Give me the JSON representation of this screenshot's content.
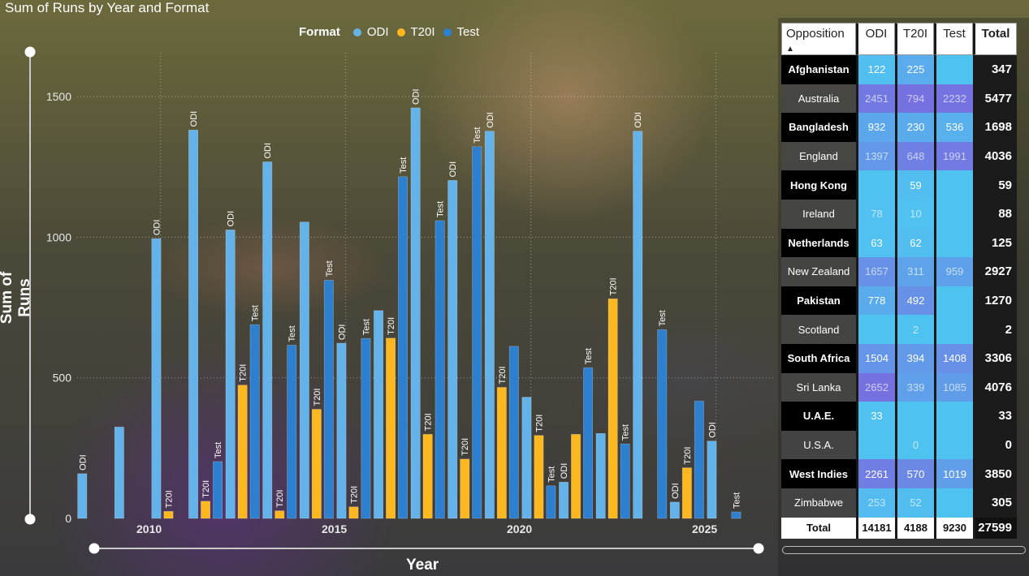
{
  "chart_data": {
    "type": "bar",
    "title": "Sum of Runs by Year and Format",
    "xlabel": "Year",
    "ylabel": "Sum of Runs",
    "ylim": [
      0,
      1700
    ],
    "yticks": [
      0,
      500,
      1000,
      1500
    ],
    "xticks": [
      2010,
      2015,
      2020,
      2025
    ],
    "grid": true,
    "legend": {
      "title": "Format",
      "placement": "top-center",
      "items": [
        "ODI",
        "T20I",
        "Test"
      ]
    },
    "colors": {
      "ODI": "#64b2ea",
      "T20I": "#fdb81f",
      "Test": "#2d7fd0"
    },
    "bars": [
      {
        "year": 2008,
        "format": "ODI",
        "value": 159,
        "label": "ODI"
      },
      {
        "year": 2009,
        "format": "ODI",
        "value": 325,
        "label": ""
      },
      {
        "year": 2010,
        "format": "ODI",
        "value": 995,
        "label": "ODI"
      },
      {
        "year": 2010,
        "format": "T20I",
        "value": 25,
        "label": "T20I"
      },
      {
        "year": 2011,
        "format": "ODI",
        "value": 1381,
        "label": "ODI"
      },
      {
        "year": 2011,
        "format": "T20I",
        "value": 61,
        "label": "T20I"
      },
      {
        "year": 2011,
        "format": "Test",
        "value": 202,
        "label": "Test"
      },
      {
        "year": 2012,
        "format": "ODI",
        "value": 1026,
        "label": "ODI"
      },
      {
        "year": 2012,
        "format": "T20I",
        "value": 474,
        "label": "T20I"
      },
      {
        "year": 2012,
        "format": "Test",
        "value": 689,
        "label": "Test"
      },
      {
        "year": 2013,
        "format": "ODI",
        "value": 1268,
        "label": "ODI"
      },
      {
        "year": 2013,
        "format": "T20I",
        "value": 27,
        "label": "T20I"
      },
      {
        "year": 2013,
        "format": "Test",
        "value": 616,
        "label": "Test"
      },
      {
        "year": 2014,
        "format": "ODI",
        "value": 1054,
        "label": ""
      },
      {
        "year": 2014,
        "format": "T20I",
        "value": 388,
        "label": "T20I"
      },
      {
        "year": 2014,
        "format": "Test",
        "value": 847,
        "label": "Test"
      },
      {
        "year": 2015,
        "format": "ODI",
        "value": 623,
        "label": "ODI"
      },
      {
        "year": 2015,
        "format": "T20I",
        "value": 41,
        "label": "T20I"
      },
      {
        "year": 2015,
        "format": "Test",
        "value": 640,
        "label": "Test"
      },
      {
        "year": 2016,
        "format": "ODI",
        "value": 739,
        "label": ""
      },
      {
        "year": 2016,
        "format": "T20I",
        "value": 641,
        "label": "T20I"
      },
      {
        "year": 2016,
        "format": "Test",
        "value": 1215,
        "label": "Test"
      },
      {
        "year": 2017,
        "format": "ODI",
        "value": 1460,
        "label": "ODI"
      },
      {
        "year": 2017,
        "format": "T20I",
        "value": 299,
        "label": "T20I"
      },
      {
        "year": 2017,
        "format": "Test",
        "value": 1059,
        "label": "Test"
      },
      {
        "year": 2018,
        "format": "ODI",
        "value": 1202,
        "label": "ODI"
      },
      {
        "year": 2018,
        "format": "T20I",
        "value": 211,
        "label": "T20I"
      },
      {
        "year": 2018,
        "format": "Test",
        "value": 1322,
        "label": "Test"
      },
      {
        "year": 2019,
        "format": "ODI",
        "value": 1377,
        "label": "ODI"
      },
      {
        "year": 2019,
        "format": "T20I",
        "value": 466,
        "label": "T20I"
      },
      {
        "year": 2019,
        "format": "Test",
        "value": 612,
        "label": ""
      },
      {
        "year": 2020,
        "format": "ODI",
        "value": 431,
        "label": ""
      },
      {
        "year": 2020,
        "format": "T20I",
        "value": 295,
        "label": "T20I"
      },
      {
        "year": 2020,
        "format": "Test",
        "value": 116,
        "label": "Test"
      },
      {
        "year": 2021,
        "format": "ODI",
        "value": 129,
        "label": "ODI"
      },
      {
        "year": 2021,
        "format": "T20I",
        "value": 299,
        "label": ""
      },
      {
        "year": 2021,
        "format": "Test",
        "value": 536,
        "label": "Test"
      },
      {
        "year": 2022,
        "format": "ODI",
        "value": 302,
        "label": ""
      },
      {
        "year": 2022,
        "format": "T20I",
        "value": 781,
        "label": "T20I"
      },
      {
        "year": 2022,
        "format": "Test",
        "value": 265,
        "label": "Test"
      },
      {
        "year": 2023,
        "format": "ODI",
        "value": 1377,
        "label": "ODI"
      },
      {
        "year": 2023,
        "format": "Test",
        "value": 671,
        "label": "Test"
      },
      {
        "year": 2024,
        "format": "ODI",
        "value": 58,
        "label": "ODI"
      },
      {
        "year": 2024,
        "format": "T20I",
        "value": 180,
        "label": "T20I"
      },
      {
        "year": 2024,
        "format": "Test",
        "value": 417,
        "label": ""
      },
      {
        "year": 2025,
        "format": "ODI",
        "value": 275,
        "label": "ODI"
      },
      {
        "year": 2025,
        "format": "Test",
        "value": 23,
        "label": "Test"
      }
    ]
  },
  "table": {
    "headers": {
      "opposition": "Opposition",
      "odi": "ODI",
      "t20i": "T20I",
      "test": "Test",
      "total": "Total"
    },
    "sort_indicator": "▲",
    "rows": [
      {
        "opposition": "Afghanistan",
        "odi": "122",
        "t20i": "225",
        "test": "",
        "total": "347"
      },
      {
        "opposition": "Australia",
        "odi": "2451",
        "t20i": "794",
        "test": "2232",
        "total": "5477"
      },
      {
        "opposition": "Bangladesh",
        "odi": "932",
        "t20i": "230",
        "test": "536",
        "total": "1698"
      },
      {
        "opposition": "England",
        "odi": "1397",
        "t20i": "648",
        "test": "1991",
        "total": "4036"
      },
      {
        "opposition": "Hong Kong",
        "odi": "",
        "t20i": "59",
        "test": "",
        "total": "59"
      },
      {
        "opposition": "Ireland",
        "odi": "78",
        "t20i": "10",
        "test": "",
        "total": "88"
      },
      {
        "opposition": "Netherlands",
        "odi": "63",
        "t20i": "62",
        "test": "",
        "total": "125"
      },
      {
        "opposition": "New Zealand",
        "odi": "1657",
        "t20i": "311",
        "test": "959",
        "total": "2927"
      },
      {
        "opposition": "Pakistan",
        "odi": "778",
        "t20i": "492",
        "test": "",
        "total": "1270"
      },
      {
        "opposition": "Scotland",
        "odi": "",
        "t20i": "2",
        "test": "",
        "total": "2"
      },
      {
        "opposition": "South Africa",
        "odi": "1504",
        "t20i": "394",
        "test": "1408",
        "total": "3306"
      },
      {
        "opposition": "Sri Lanka",
        "odi": "2652",
        "t20i": "339",
        "test": "1085",
        "total": "4076"
      },
      {
        "opposition": "U.A.E.",
        "odi": "33",
        "t20i": "",
        "test": "",
        "total": "33"
      },
      {
        "opposition": "U.S.A.",
        "odi": "",
        "t20i": "0",
        "test": "",
        "total": "0"
      },
      {
        "opposition": "West Indies",
        "odi": "2261",
        "t20i": "570",
        "test": "1019",
        "total": "3850"
      },
      {
        "opposition": "Zimbabwe",
        "odi": "253",
        "t20i": "52",
        "test": "",
        "total": "305"
      }
    ],
    "totals": {
      "label": "Total",
      "odi": "14181",
      "t20i": "4188",
      "test": "9230",
      "total": "27599"
    }
  }
}
